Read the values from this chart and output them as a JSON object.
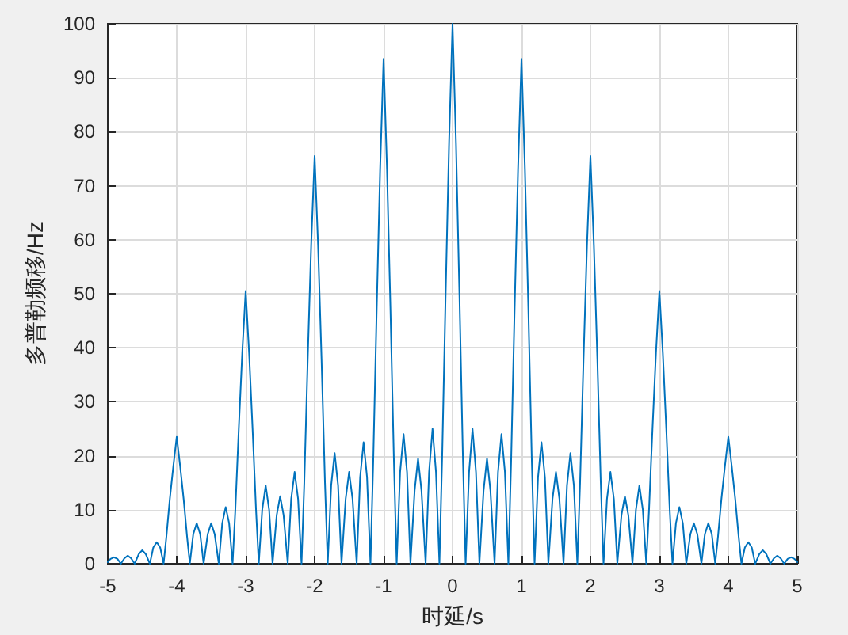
{
  "chart_data": {
    "type": "line",
    "xlabel": "时延/s",
    "ylabel": "多普勒频移/Hz",
    "xlim": [
      -5,
      5
    ],
    "xticks": [
      -5,
      -4,
      -3,
      -2,
      -1,
      0,
      1,
      2,
      3,
      4,
      5
    ],
    "ylim": [
      0,
      100
    ],
    "yticks": [
      0,
      10,
      20,
      30,
      40,
      50,
      60,
      70,
      80,
      90,
      100
    ],
    "grid": true,
    "marker": "none",
    "line_style": "solid",
    "x": [
      -5,
      -4.96,
      -4.91,
      -4.86,
      -4.81,
      -4.76,
      -4.71,
      -4.66,
      -4.61,
      -4.55,
      -4.5,
      -4.45,
      -4.39,
      -4.34,
      -4.29,
      -4.24,
      -4.19,
      -4.15,
      -4.1,
      -4.05,
      -4,
      -3.95,
      -3.9,
      -3.85,
      -3.81,
      -3.76,
      -3.71,
      -3.66,
      -3.61,
      -3.55,
      -3.5,
      -3.45,
      -3.39,
      -3.34,
      -3.29,
      -3.24,
      -3.19,
      -3.15,
      -3.1,
      -3.05,
      -3,
      -2.95,
      -2.9,
      -2.85,
      -2.81,
      -2.76,
      -2.71,
      -2.66,
      -2.61,
      -2.55,
      -2.5,
      -2.45,
      -2.39,
      -2.34,
      -2.29,
      -2.24,
      -2.19,
      -2.15,
      -2.1,
      -2.05,
      -2,
      -1.95,
      -1.9,
      -1.85,
      -1.81,
      -1.76,
      -1.71,
      -1.66,
      -1.61,
      -1.55,
      -1.5,
      -1.45,
      -1.39,
      -1.34,
      -1.29,
      -1.24,
      -1.19,
      -1.15,
      -1.1,
      -1.05,
      -1,
      -0.95,
      -0.9,
      -0.85,
      -0.81,
      -0.76,
      -0.71,
      -0.66,
      -0.61,
      -0.55,
      -0.5,
      -0.45,
      -0.39,
      -0.34,
      -0.29,
      -0.24,
      -0.19,
      -0.15,
      -0.1,
      -0.05,
      0,
      0.05,
      0.1,
      0.15,
      0.19,
      0.24,
      0.29,
      0.34,
      0.39,
      0.45,
      0.5,
      0.55,
      0.61,
      0.66,
      0.71,
      0.76,
      0.81,
      0.85,
      0.9,
      0.95,
      1,
      1.05,
      1.1,
      1.15,
      1.19,
      1.24,
      1.29,
      1.34,
      1.39,
      1.45,
      1.5,
      1.55,
      1.61,
      1.66,
      1.71,
      1.76,
      1.81,
      1.85,
      1.9,
      1.95,
      2,
      2.05,
      2.1,
      2.15,
      2.19,
      2.24,
      2.29,
      2.34,
      2.39,
      2.45,
      2.5,
      2.55,
      2.61,
      2.66,
      2.71,
      2.76,
      2.81,
      2.85,
      2.9,
      2.95,
      3,
      3.05,
      3.1,
      3.15,
      3.19,
      3.24,
      3.29,
      3.34,
      3.39,
      3.45,
      3.5,
      3.55,
      3.61,
      3.66,
      3.71,
      3.76,
      3.81,
      3.85,
      3.9,
      3.95,
      4,
      4.05,
      4.1,
      4.15,
      4.19,
      4.24,
      4.29,
      4.34,
      4.39,
      4.45,
      4.5,
      4.55,
      4.61,
      4.66,
      4.71,
      4.76,
      4.81,
      4.86,
      4.91,
      4.96,
      5
    ],
    "series": [
      {
        "color": "#0072bd",
        "values": [
          0.3,
          0.9,
          1.2,
          0.9,
          0,
          1,
          1.5,
          1,
          0,
          1.8,
          2.5,
          1.8,
          0,
          3,
          4,
          3,
          0,
          5,
          12,
          18,
          23.5,
          18,
          12,
          5,
          0,
          5.5,
          7.5,
          5.5,
          0,
          5.5,
          7.5,
          5.5,
          0,
          7.5,
          10.5,
          7.5,
          0,
          10,
          25,
          39,
          50.5,
          39,
          25,
          10,
          0,
          10,
          14.5,
          10,
          0,
          9,
          12.5,
          9,
          0,
          12,
          17,
          12,
          0,
          15,
          38,
          59,
          75.5,
          59,
          38,
          15,
          0,
          14.5,
          20.5,
          14.5,
          0,
          12,
          17,
          12,
          0,
          16,
          22.5,
          16,
          0,
          19,
          47,
          73,
          93.5,
          73,
          47,
          19,
          0,
          17,
          24,
          17,
          0,
          13.5,
          19.5,
          13.5,
          0,
          17,
          25,
          17,
          0,
          20,
          50,
          78,
          100,
          78,
          50,
          20,
          0,
          17,
          25,
          17,
          0,
          13.5,
          19.5,
          13.5,
          0,
          17,
          24,
          17,
          0,
          19,
          47,
          73,
          93.5,
          73,
          47,
          19,
          0,
          16,
          22.5,
          16,
          0,
          12,
          17,
          12,
          0,
          14.5,
          20.5,
          14.5,
          0,
          15,
          38,
          59,
          75.5,
          59,
          38,
          15,
          0,
          12,
          17,
          12,
          0,
          9,
          12.5,
          9,
          0,
          10,
          14.5,
          10,
          0,
          10,
          25,
          39,
          50.5,
          39,
          25,
          10,
          0,
          7.5,
          10.5,
          7.5,
          0,
          5.5,
          7.5,
          5.5,
          0,
          5.5,
          7.5,
          5.5,
          0,
          5,
          12,
          18,
          23.5,
          18,
          12,
          5,
          0,
          3,
          4,
          3,
          0,
          1.8,
          2.5,
          1.8,
          0,
          1,
          1.5,
          1,
          0,
          0.9,
          1.2,
          0.9,
          0.3
        ]
      }
    ]
  }
}
